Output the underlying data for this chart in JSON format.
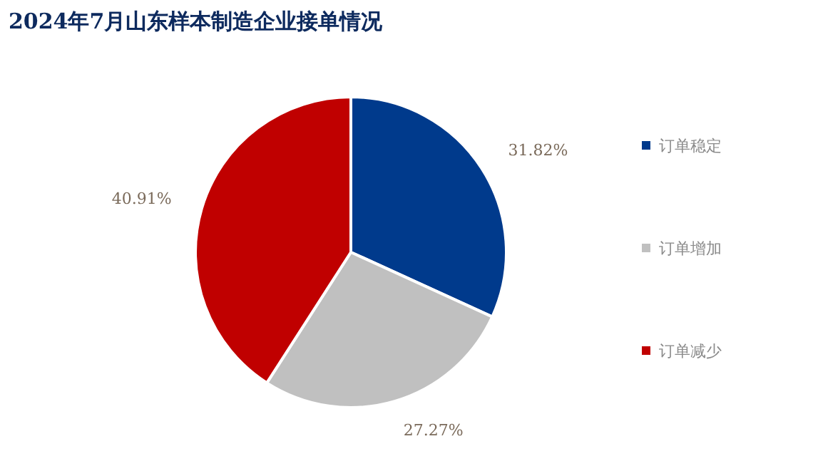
{
  "chart_data": {
    "type": "pie",
    "title": "2024年7月山东样本制造企业接单情况",
    "categories": [
      "订单稳定",
      "订单增加",
      "订单减少"
    ],
    "values": [
      31.82,
      27.27,
      40.91
    ],
    "value_labels": [
      "31.82%",
      "27.27%",
      "40.91%"
    ],
    "colors": [
      "#003a8c",
      "#c0c0c0",
      "#c00000"
    ],
    "legend": "right"
  }
}
